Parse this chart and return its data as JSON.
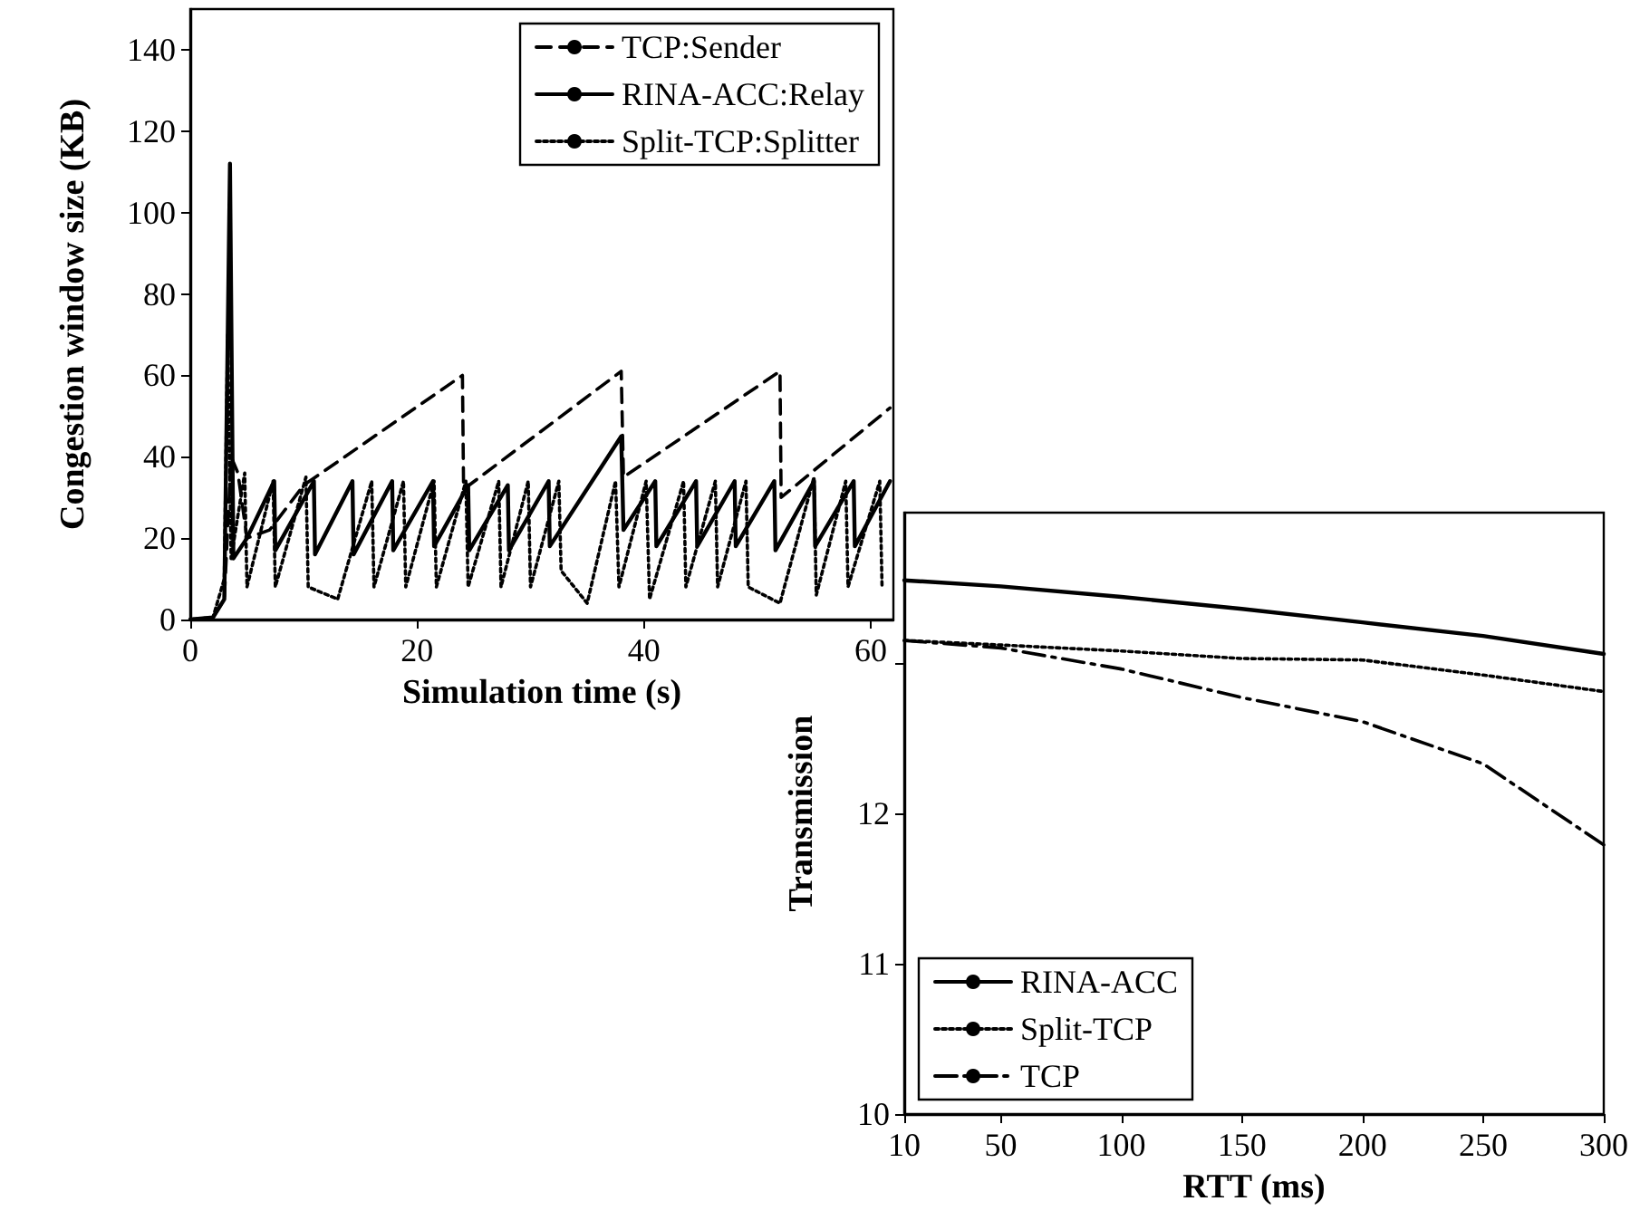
{
  "chart_data": [
    {
      "type": "line",
      "xlabel": "Simulation time (s)",
      "ylabel": "Congestion window size (KB)",
      "xlim": [
        0,
        62
      ],
      "xticks": [
        0,
        20,
        40,
        60
      ],
      "ylim": [
        0,
        150
      ],
      "yticks": [
        0,
        20,
        40,
        60,
        80,
        100,
        120,
        140
      ],
      "grid": false,
      "legend": "top right",
      "marker": "none",
      "series": [
        {
          "name": "TCP:Sender",
          "color": "#000000",
          "line_style": "dashed",
          "x": [
            0,
            2,
            3,
            3.6,
            4.2,
            5,
            7,
            10,
            24,
            24.1,
            38,
            38.2,
            52,
            52.1,
            61.7
          ],
          "values": [
            0,
            0.5,
            5,
            40,
            36,
            20,
            22,
            33,
            60,
            32,
            61,
            35,
            61,
            30,
            52
          ]
        },
        {
          "name": "RINA-ACC:Relay",
          "color": "#000000",
          "line_style": "solid",
          "x": [
            0,
            2,
            3,
            3.5,
            3.8,
            5,
            7.4,
            7.5,
            10.9,
            11,
            14.3,
            14.4,
            17.8,
            17.9,
            21.4,
            21.5,
            24.5,
            24.6,
            28,
            28.1,
            31.6,
            31.7,
            38,
            38.2,
            41,
            41.1,
            44.6,
            44.7,
            48,
            48.1,
            51.5,
            51.6,
            55,
            55.1,
            58.5,
            58.6,
            61.7
          ],
          "values": [
            0,
            0.5,
            5,
            112,
            15,
            20,
            34,
            17,
            34,
            16,
            34,
            16,
            34,
            17,
            34,
            18,
            33,
            17,
            33,
            17,
            34,
            18,
            45,
            22,
            34,
            18,
            34,
            18,
            34,
            18,
            34,
            17,
            34,
            18,
            34,
            18,
            34
          ]
        },
        {
          "name": "Split-TCP:Splitter",
          "color": "#000000",
          "line_style": "dotted",
          "x": [
            0,
            2,
            3,
            3.3,
            3.6,
            4.8,
            5,
            7.3,
            7.5,
            10.2,
            10.4,
            13,
            16,
            16.2,
            18.8,
            19,
            21.5,
            21.7,
            24.3,
            24.5,
            27.2,
            27.4,
            29.8,
            30,
            32.5,
            32.7,
            35,
            37.5,
            37.8,
            40.2,
            40.5,
            43.5,
            43.7,
            46.3,
            46.5,
            49,
            49.2,
            52,
            55,
            55.2,
            57.8,
            58,
            60.8,
            61
          ],
          "values": [
            0,
            0.5,
            10,
            70,
            15,
            36,
            8,
            34,
            8,
            35,
            8,
            5,
            34,
            8,
            34,
            8,
            34,
            8,
            34,
            8,
            34,
            8,
            34,
            8,
            34,
            12,
            4,
            34,
            8,
            34,
            5,
            34,
            8,
            34,
            8,
            34,
            8,
            4,
            35,
            6,
            34,
            8,
            34,
            8
          ]
        }
      ]
    },
    {
      "type": "line",
      "xlabel": "RTT (ms)",
      "ylabel": "Transmission",
      "xlim": [
        10,
        300
      ],
      "xticks": [
        10,
        50,
        100,
        150,
        200,
        250,
        300
      ],
      "ylim": [
        10,
        14
      ],
      "yticks": [
        10,
        11,
        12,
        {
          "value": 13,
          "label": null
        }
      ],
      "grid": false,
      "legend": "bottom left",
      "marker": "none",
      "series": [
        {
          "name": "RINA-ACC",
          "color": "#000000",
          "line_style": "solid",
          "x": [
            10,
            50,
            100,
            150,
            200,
            250,
            300
          ],
          "values": [
            13.55,
            13.51,
            13.44,
            13.36,
            13.27,
            13.18,
            13.06
          ]
        },
        {
          "name": "Split-TCP",
          "color": "#000000",
          "line_style": "dotted",
          "x": [
            10,
            50,
            100,
            150,
            200,
            250,
            300
          ],
          "values": [
            13.15,
            13.12,
            13.08,
            13.03,
            13.02,
            12.92,
            12.81
          ]
        },
        {
          "name": "TCP",
          "color": "#000000",
          "line_style": "dashdot",
          "x": [
            10,
            50,
            100,
            150,
            200,
            250,
            300
          ],
          "values": [
            13.15,
            13.1,
            12.96,
            12.77,
            12.61,
            12.33,
            11.79
          ]
        }
      ]
    }
  ]
}
